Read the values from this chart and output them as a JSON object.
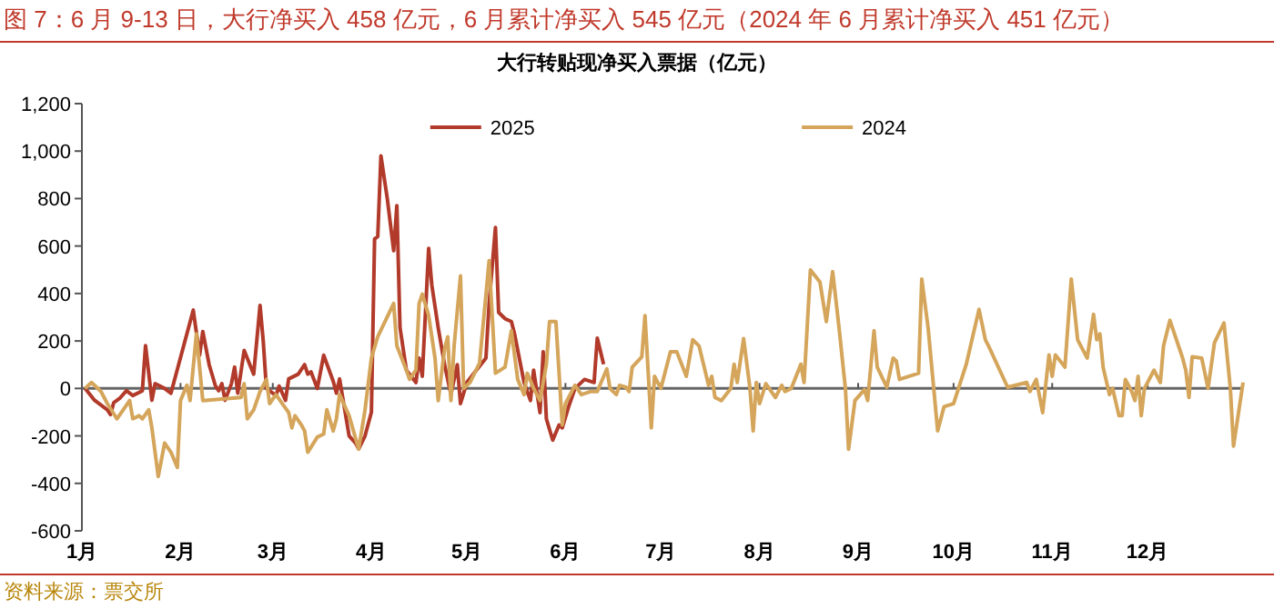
{
  "chart_data": {
    "type": "line",
    "title": "图 7：6 月 9-13 日，大行净买入 458 亿元，6 月累计净买入 545 亿元（2024 年 6 月累计净买入 451 亿元）",
    "subtitle": "大行转贴现净买入票据（亿元）",
    "annotations": [
      "资料来源：票交所"
    ],
    "xlim": [
      "--01-01",
      "--12-31"
    ],
    "xticks": [
      {
        "value": "--01-01",
        "label": "1月"
      },
      {
        "value": "--02-01",
        "label": "2月"
      },
      {
        "value": "--03-01",
        "label": "3月"
      },
      {
        "value": "--04-01",
        "label": "4月"
      },
      {
        "value": "--05-01",
        "label": "5月"
      },
      {
        "value": "--06-01",
        "label": "6月"
      },
      {
        "value": "--07-01",
        "label": "7月"
      },
      {
        "value": "--08-01",
        "label": "8月"
      },
      {
        "value": "--09-01",
        "label": "9月"
      },
      {
        "value": "--10-01",
        "label": "10月"
      },
      {
        "value": "--11-01",
        "label": "11月"
      },
      {
        "value": "--12-01",
        "label": "12月"
      }
    ],
    "ylim": [
      -600,
      1200
    ],
    "yticks": [
      {
        "value": -600,
        "label": "-600"
      },
      {
        "value": -400,
        "label": "-400"
      },
      {
        "value": -200,
        "label": "-200"
      },
      {
        "value": 0,
        "label": "0"
      },
      {
        "value": 200,
        "label": "200"
      },
      {
        "value": 400,
        "label": "400"
      },
      {
        "value": 600,
        "label": "600"
      },
      {
        "value": 800,
        "label": "800"
      },
      {
        "value": 1000,
        "label": "1,000"
      },
      {
        "value": 1200,
        "label": "1,200"
      }
    ],
    "legend": "top",
    "marker": "none",
    "series": [
      {
        "name": "2025",
        "color": "#b23a2a",
        "x": [
          "--01-02",
          "--01-05",
          "--01-09",
          "--01-10",
          "--01-11",
          "--01-13",
          "--01-15",
          "--01-17",
          "--01-20",
          "--01-21",
          "--01-23",
          "--01-24",
          "--01-27",
          "--01-29",
          "--02-05",
          "--02-07",
          "--02-08",
          "--02-10",
          "--02-12",
          "--02-13",
          "--02-14",
          "--02-15",
          "--02-17",
          "--02-18",
          "--02-19",
          "--02-21",
          "--02-24",
          "--02-26",
          "--02-27",
          "--02-28",
          "--03-02",
          "--03-03",
          "--03-05",
          "--03-06",
          "--03-09",
          "--03-11",
          "--03-12",
          "--03-13",
          "--03-15",
          "--03-17",
          "--03-20",
          "--03-21",
          "--03-22",
          "--03-23",
          "--03-25",
          "--03-27",
          "--03-28",
          "--03-30",
          "--04-01",
          "--04-02",
          "--04-03",
          "--04-04",
          "--04-06",
          "--04-08",
          "--04-09",
          "--04-10",
          "--04-12",
          "--04-15",
          "--04-16",
          "--04-17",
          "--04-19",
          "--04-20",
          "--04-22",
          "--04-24",
          "--04-26",
          "--04-28",
          "--04-29",
          "--05-01",
          "--05-04",
          "--05-07",
          "--05-08",
          "--05-10",
          "--05-11",
          "--05-13",
          "--05-15",
          "--05-16",
          "--05-19",
          "--05-21",
          "--05-22",
          "--05-24",
          "--05-25",
          "--05-26",
          "--05-28",
          "--05-30",
          "--05-31",
          "--06-02",
          "--06-04",
          "--06-07",
          "--06-10",
          "--06-11",
          "--06-13"
        ],
        "values": [
          0,
          -50,
          -90,
          -110,
          -60,
          -40,
          -10,
          -30,
          -10,
          180,
          -50,
          20,
          0,
          -20,
          330,
          140,
          240,
          100,
          10,
          -10,
          20,
          -50,
          20,
          90,
          -20,
          160,
          60,
          350,
          200,
          0,
          -30,
          10,
          -50,
          40,
          60,
          100,
          60,
          70,
          0,
          140,
          30,
          -20,
          40,
          -40,
          -200,
          -230,
          -255,
          -200,
          -100,
          630,
          640,
          980,
          800,
          580,
          770,
          256,
          77,
          25,
          128,
          51,
          590,
          435,
          256,
          100,
          -25,
          100,
          -64,
          25,
          77,
          128,
          358,
          678,
          320,
          294,
          282,
          230,
          25,
          -51,
          77,
          -102,
          154,
          -128,
          -218,
          -154,
          -166,
          -77,
          0,
          38,
          25,
          212,
          102
        ]
      },
      {
        "name": "2024",
        "color": "#d4a55a",
        "x": [
          "--01-02",
          "--01-04",
          "--01-05",
          "--01-07",
          "--01-09",
          "--01-12",
          "--01-14",
          "--01-16",
          "--01-17",
          "--01-19",
          "--01-20",
          "--01-22",
          "--01-23",
          "--01-25",
          "--01-27",
          "--01-29",
          "--01-31",
          "--02-01",
          "--02-03",
          "--02-04",
          "--02-06",
          "--02-08",
          "--02-20",
          "--02-21",
          "--02-22",
          "--02-24",
          "--02-26",
          "--02-28",
          "--02-29",
          "--03-02",
          "--03-04",
          "--03-06",
          "--03-07",
          "--03-08",
          "--03-10",
          "--03-11",
          "--03-12",
          "--03-15",
          "--03-17",
          "--03-18",
          "--03-20",
          "--03-21",
          "--03-22",
          "--03-25",
          "--03-28",
          "--03-30",
          "--04-01",
          "--04-03",
          "--04-08",
          "--04-09",
          "--04-12",
          "--04-13",
          "--04-15",
          "--04-16",
          "--04-17",
          "--04-19",
          "--04-21",
          "--04-22",
          "--04-24",
          "--04-25",
          "--04-26",
          "--04-27",
          "--04-29",
          "--04-30",
          "--05-02",
          "--05-05",
          "--05-08",
          "--05-10",
          "--05-13",
          "--05-15",
          "--05-17",
          "--05-19",
          "--05-20",
          "--05-22",
          "--05-24",
          "--05-26",
          "--05-27",
          "--05-29",
          "--05-31",
          "--06-01",
          "--06-04",
          "--06-06",
          "--06-09",
          "--06-11",
          "--06-14",
          "--06-15",
          "--06-17",
          "--06-18",
          "--06-20",
          "--06-21",
          "--06-22",
          "--06-25",
          "--06-26",
          "--06-28",
          "--06-29",
          "--07-01",
          "--07-04",
          "--07-06",
          "--07-09",
          "--07-11",
          "--07-13",
          "--07-16",
          "--07-17",
          "--07-18",
          "--07-20",
          "--07-23",
          "--07-24",
          "--07-25",
          "--07-27",
          "--07-29",
          "--07-30",
          "--07-31",
          "--08-01",
          "--08-03",
          "--08-06",
          "--08-08",
          "--08-09",
          "--08-11",
          "--08-14",
          "--08-15",
          "--08-17",
          "--08-20",
          "--08-22",
          "--08-24",
          "--08-26",
          "--08-28",
          "--08-29",
          "--08-31",
          "--09-03",
          "--09-04",
          "--09-06",
          "--09-07",
          "--09-10",
          "--09-12",
          "--09-13",
          "--09-14",
          "--09-20",
          "--09-21",
          "--09-23",
          "--09-26",
          "--09-28",
          "--10-01",
          "--10-05",
          "--10-09",
          "--10-11",
          "--10-12",
          "--10-18",
          "--10-24",
          "--10-25",
          "--10-27",
          "--10-29",
          "--10-31",
          "--11-01",
          "--11-02",
          "--11-05",
          "--11-07",
          "--11-09",
          "--11-12",
          "--11-14",
          "--11-15",
          "--11-16",
          "--11-17",
          "--11-19",
          "--11-20",
          "--11-22",
          "--11-23",
          "--11-24",
          "--11-26",
          "--11-27",
          "--11-28",
          "--11-29",
          "--11-30",
          "--12-03",
          "--12-05",
          "--12-06",
          "--12-08",
          "--12-12",
          "--12-13",
          "--12-14",
          "--12-15",
          "--12-18",
          "--12-20",
          "--12-22",
          "--12-25",
          "--12-27",
          "--12-28",
          "--12-29",
          "--12-31"
        ],
        "values": [
          0,
          25,
          13,
          -13,
          -64,
          -128,
          -90,
          -51,
          -128,
          -115,
          -128,
          -90,
          -166,
          -371,
          -230,
          -269,
          -333,
          -51,
          13,
          -51,
          230,
          -51,
          -38,
          20,
          -128,
          -90,
          -13,
          38,
          -64,
          -26,
          -64,
          -102,
          -166,
          -115,
          -154,
          -179,
          -269,
          -205,
          -192,
          -90,
          -179,
          -128,
          -26,
          -115,
          -256,
          -90,
          128,
          218,
          358,
          179,
          77,
          38,
          77,
          358,
          397,
          307,
          128,
          -51,
          166,
          218,
          -51,
          179,
          474,
          0,
          25,
          107,
          538,
          64,
          90,
          243,
          38,
          -26,
          64,
          0,
          -51,
          102,
          282,
          282,
          -154,
          -64,
          13,
          -26,
          -13,
          -13,
          82,
          0,
          -26,
          13,
          5,
          -13,
          90,
          133,
          307,
          -166,
          51,
          0,
          154,
          154,
          51,
          205,
          179,
          13,
          51,
          -38,
          -51,
          0,
          102,
          25,
          210,
          0,
          -179,
          25,
          -64,
          20,
          -38,
          13,
          -13,
          0,
          102,
          25,
          499,
          448,
          282,
          492,
          256,
          0,
          -256,
          -51,
          -5,
          -51,
          243,
          90,
          5,
          128,
          115,
          38,
          64,
          461,
          256,
          -179,
          -77,
          -64,
          102,
          333,
          205,
          179,
          5,
          25,
          -13,
          38,
          -102,
          141,
          51,
          141,
          90,
          461,
          205,
          128,
          312,
          205,
          230,
          90,
          -26,
          0,
          -115,
          -115,
          38,
          -13,
          -51,
          51,
          -115,
          0,
          77,
          25,
          179,
          287,
          128,
          77,
          -38,
          133,
          128,
          0,
          192,
          276,
          0,
          -243,
          -154,
          25
        ]
      }
    ]
  }
}
